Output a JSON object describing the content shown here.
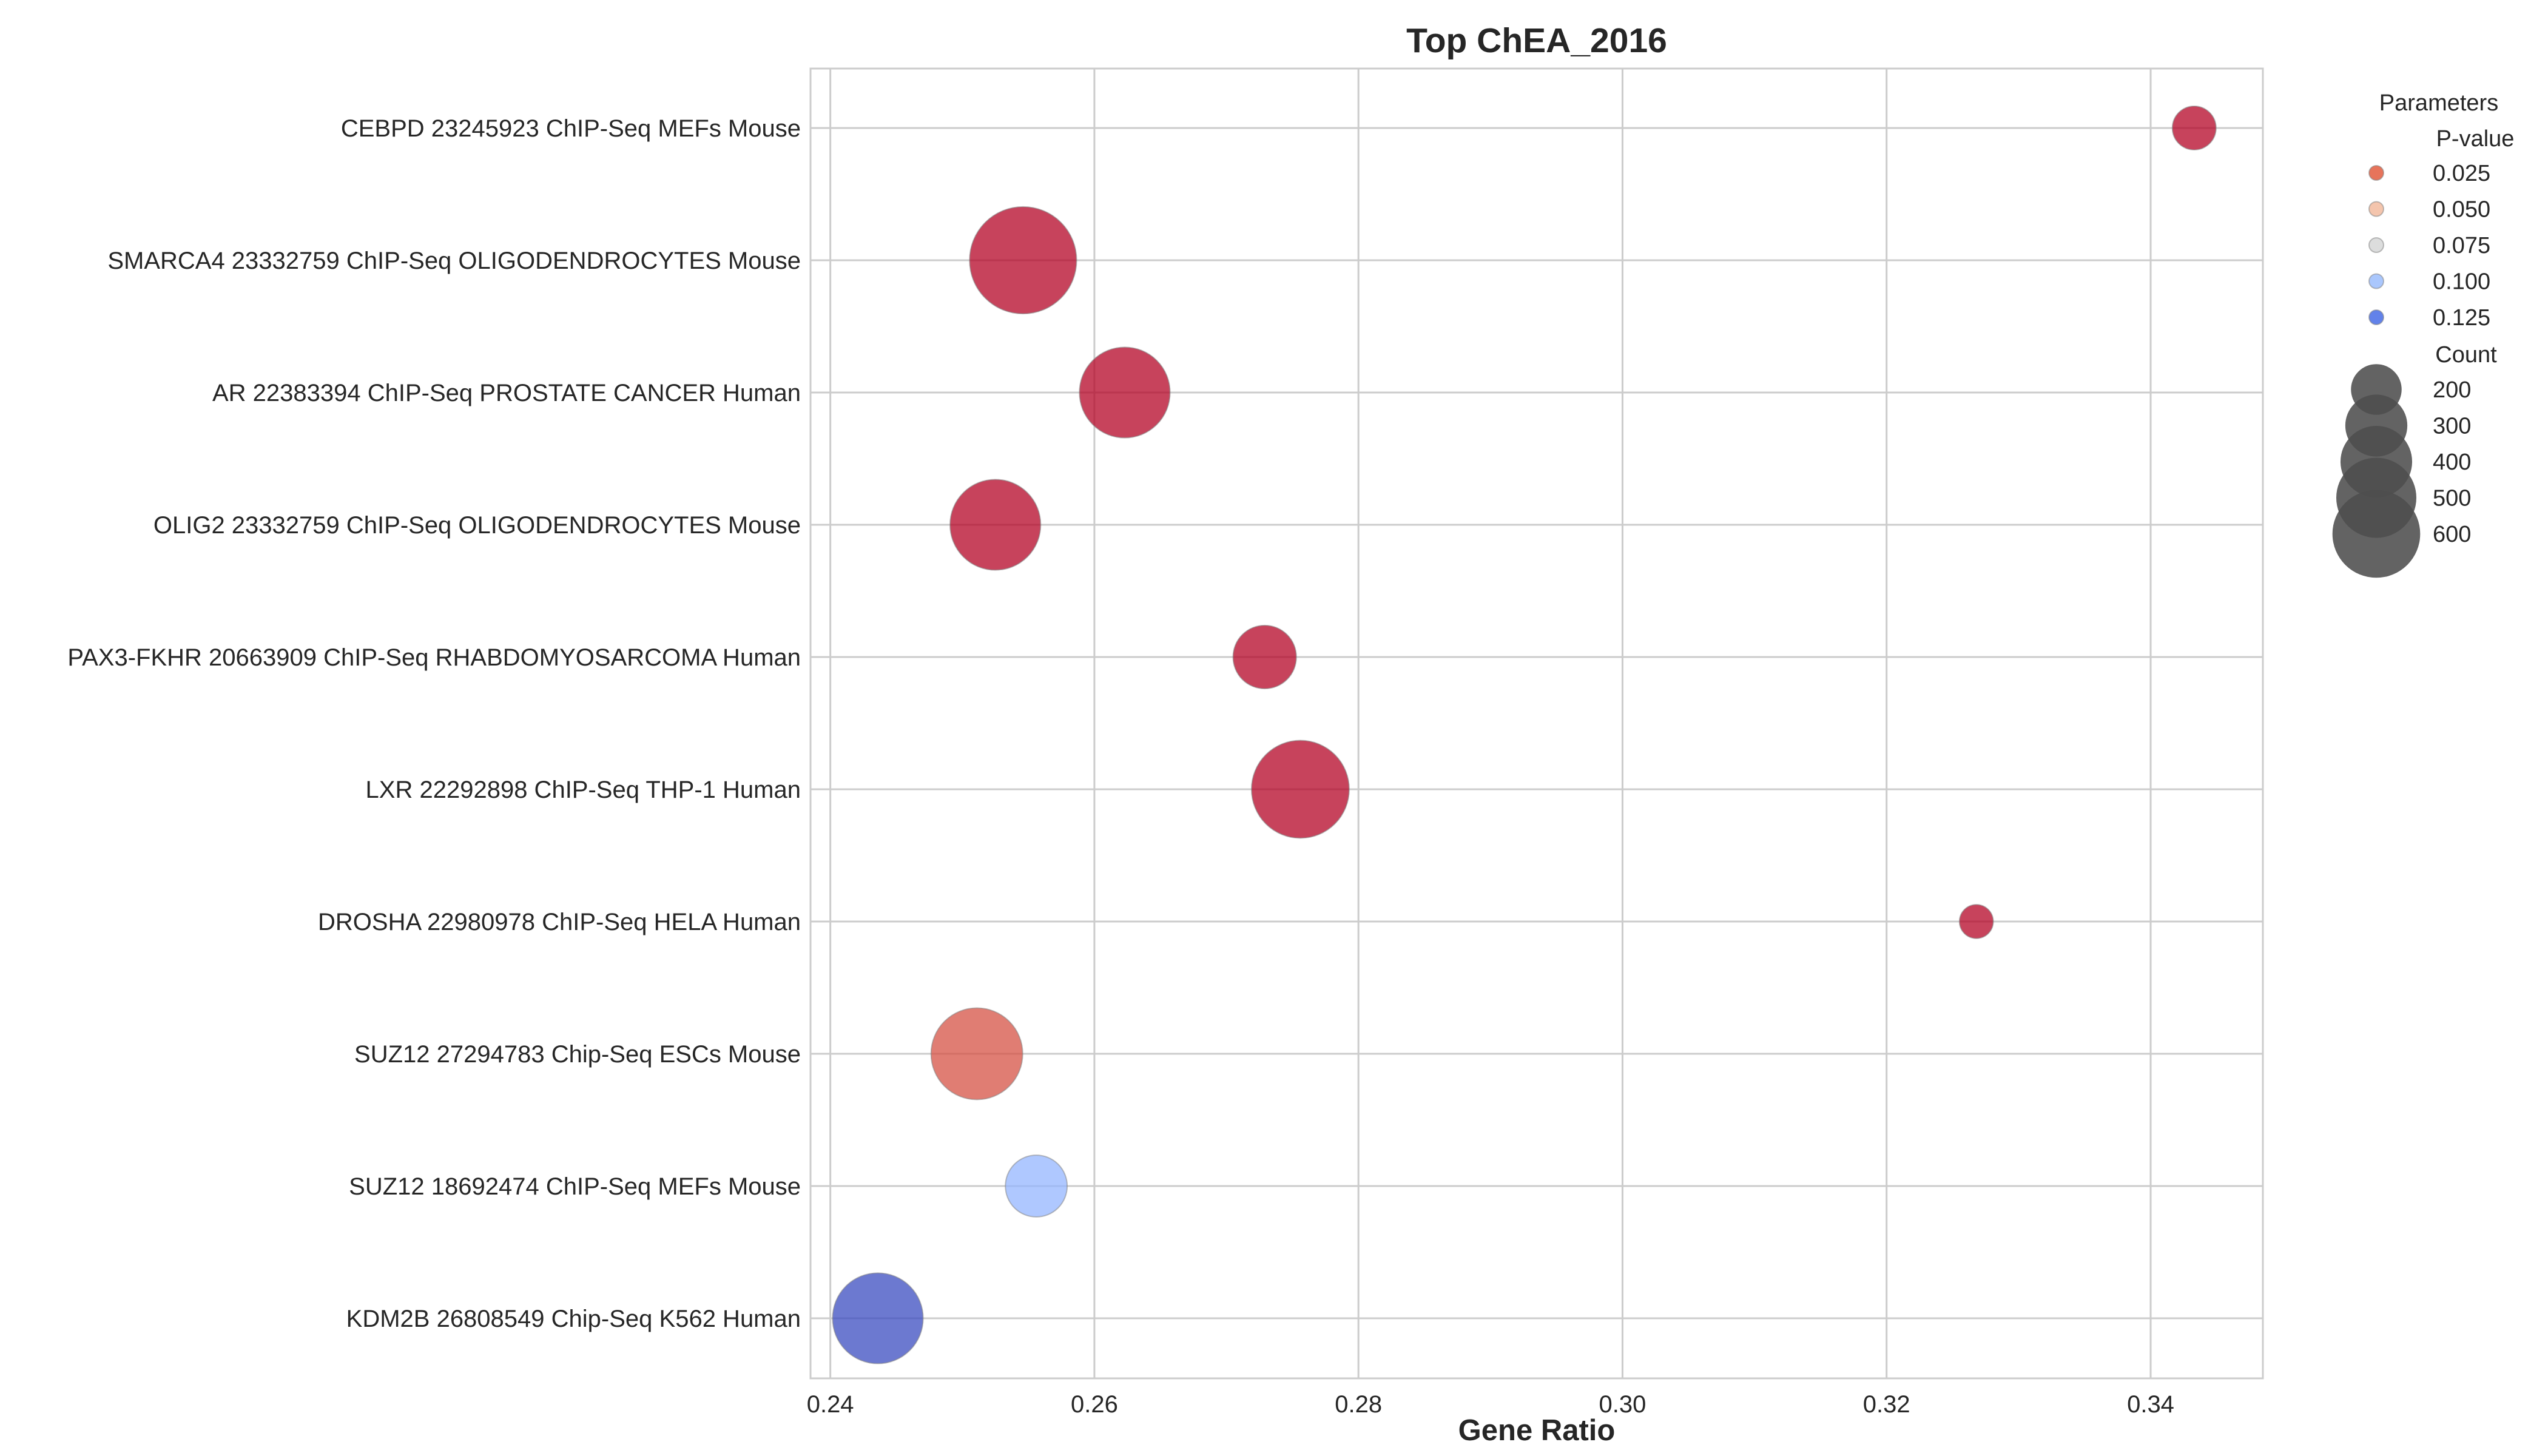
{
  "chart_data": {
    "type": "scatter",
    "title": "Top ChEA_2016",
    "xlabel": "Gene Ratio",
    "ylabel": "",
    "xlim": [
      0.2385,
      0.3485
    ],
    "xticks": [
      0.24,
      0.26,
      0.28,
      0.3,
      0.32,
      0.34
    ],
    "xtick_labels": [
      "0.24",
      "0.26",
      "0.28",
      "0.30",
      "0.32",
      "0.34"
    ],
    "grid": true,
    "legend_position": "right",
    "categories": [
      "CEBPD 23245923 ChIP-Seq MEFs Mouse",
      "SMARCA4 23332759 ChIP-Seq OLIGODENDROCYTES Mouse",
      "AR 22383394 ChIP-Seq PROSTATE CANCER Human",
      "OLIG2 23332759 ChIP-Seq OLIGODENDROCYTES Mouse",
      "PAX3-FKHR 20663909 ChIP-Seq RHABDOMYOSARCOMA Human",
      "LXR 22292898 ChIP-Seq THP-1 Human",
      "DROSHA 22980978 ChIP-Seq HELA Human",
      "SUZ12 27294783 Chip-Seq ESCs Mouse",
      "SUZ12 18692474 ChIP-Seq MEFs Mouse",
      "KDM2B 26808549 Chip-Seq K562 Human"
    ],
    "points": [
      {
        "term": "CEBPD 23245923 ChIP-Seq MEFs Mouse",
        "gene_ratio": 0.3433,
        "count": 100,
        "p_value": 0.0001,
        "color": "#b40426"
      },
      {
        "term": "SMARCA4 23332759 ChIP-Seq OLIGODENDROCYTES Mouse",
        "gene_ratio": 0.2546,
        "count": 600,
        "p_value": 0.0001,
        "color": "#b40426"
      },
      {
        "term": "AR 22383394 ChIP-Seq PROSTATE CANCER Human",
        "gene_ratio": 0.2623,
        "count": 430,
        "p_value": 0.0001,
        "color": "#b40426"
      },
      {
        "term": "OLIG2 23332759 ChIP-Seq OLIGODENDROCYTES Mouse",
        "gene_ratio": 0.2525,
        "count": 430,
        "p_value": 0.0001,
        "color": "#b40426"
      },
      {
        "term": "PAX3-FKHR 20663909 ChIP-Seq RHABDOMYOSARCOMA Human",
        "gene_ratio": 0.2729,
        "count": 210,
        "p_value": 0.0001,
        "color": "#b40426"
      },
      {
        "term": "LXR 22292898 ChIP-Seq THP-1 Human",
        "gene_ratio": 0.2756,
        "count": 500,
        "p_value": 0.0001,
        "color": "#b40426"
      },
      {
        "term": "DROSHA 22980978 ChIP-Seq HELA Human",
        "gene_ratio": 0.3268,
        "count": 60,
        "p_value": 0.0001,
        "color": "#b40426"
      },
      {
        "term": "SUZ12 27294783 Chip-Seq ESCs Mouse",
        "gene_ratio": 0.2511,
        "count": 440,
        "p_value": 0.025,
        "color": "#d65244"
      },
      {
        "term": "SUZ12 18692474 ChIP-Seq MEFs Mouse",
        "gene_ratio": 0.2556,
        "count": 200,
        "p_value": 0.1,
        "color": "#94b6ff"
      },
      {
        "term": "KDM2B 26808549 Chip-Seq K562 Human",
        "gene_ratio": 0.2436,
        "count": 430,
        "p_value": 0.14,
        "color": "#3b4cc0"
      }
    ],
    "legend": {
      "title": "Parameters",
      "color_title": "P-value",
      "color_items": [
        {
          "label": "0.025",
          "color": "#e7745b"
        },
        {
          "label": "0.050",
          "color": "#f4c5ad"
        },
        {
          "label": "0.075",
          "color": "#dcdddd"
        },
        {
          "label": "0.100",
          "color": "#aac7fd"
        },
        {
          "label": "0.125",
          "color": "#6282ea"
        }
      ],
      "size_title": "Count",
      "size_items": [
        {
          "label": "200",
          "count": 200
        },
        {
          "label": "300",
          "count": 300
        },
        {
          "label": "400",
          "count": 400
        },
        {
          "label": "500",
          "count": 500
        },
        {
          "label": "600",
          "count": 600
        }
      ]
    }
  }
}
